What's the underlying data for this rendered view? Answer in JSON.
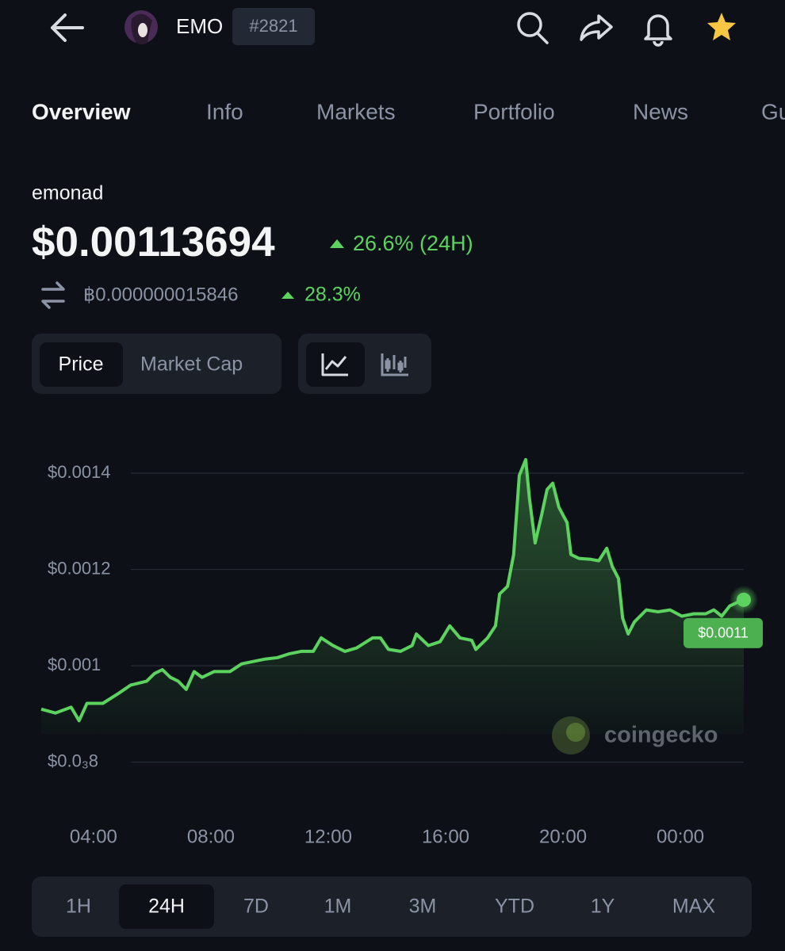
{
  "header": {
    "symbol": "EMO",
    "rank": "#2821"
  },
  "tabs": [
    "Overview",
    "Info",
    "Markets",
    "Portfolio",
    "News",
    "Gu"
  ],
  "coin": {
    "name": "emonad",
    "price": "$0.00113694",
    "change": "26.6% (24H)",
    "btc_price": "฿0.000000015846",
    "btc_change": "28.3%"
  },
  "toggles": {
    "metric": [
      "Price",
      "Market Cap"
    ]
  },
  "chart_data": {
    "type": "line",
    "color": "#5dd35f",
    "grid": true,
    "x": [
      2.22,
      2.7,
      3.24,
      3.51,
      3.78,
      4.32,
      4.86,
      5.27,
      5.81,
      6.08,
      6.35,
      6.62,
      6.89,
      7.16,
      7.43,
      7.7,
      8.11,
      8.65,
      9.05,
      9.46,
      9.86,
      10.27,
      10.68,
      11.08,
      11.49,
      11.76,
      12.16,
      12.57,
      12.97,
      13.51,
      13.78,
      14.05,
      14.46,
      14.86,
      15.0,
      15.41,
      15.81,
      16.14,
      16.49,
      16.89,
      17.03,
      17.43,
      17.7,
      17.84,
      18.11,
      18.32,
      18.51,
      18.73,
      18.86,
      19.05,
      19.27,
      19.46,
      19.65,
      19.86,
      20.14,
      20.27,
      20.54,
      20.95,
      21.22,
      21.49,
      21.68,
      21.89,
      22.03,
      22.22,
      22.43,
      22.84,
      23.24,
      23.65,
      24.05,
      24.46,
      24.86,
      25.14,
      25.41,
      25.68,
      25.95,
      26.16
    ],
    "values": [
      0.00091,
      0.000902,
      0.000914,
      0.000886,
      0.000922,
      0.000922,
      0.000943,
      0.00096,
      0.000968,
      0.000984,
      0.000992,
      0.000976,
      0.000968,
      0.000951,
      0.000988,
      0.000976,
      0.000988,
      0.000988,
      0.001004,
      0.001009,
      0.001014,
      0.001017,
      0.001025,
      0.00103,
      0.00103,
      0.001058,
      0.001042,
      0.00103,
      0.001037,
      0.001058,
      0.001058,
      0.001034,
      0.00103,
      0.001042,
      0.001066,
      0.001042,
      0.00105,
      0.001083,
      0.001058,
      0.001053,
      0.001034,
      0.001058,
      0.001083,
      0.001149,
      0.001165,
      0.001231,
      0.001395,
      0.001428,
      0.001346,
      0.001255,
      0.001313,
      0.001366,
      0.001379,
      0.001329,
      0.001297,
      0.001231,
      0.001223,
      0.001221,
      0.001218,
      0.001244,
      0.001206,
      0.001181,
      0.001099,
      0.001066,
      0.001091,
      0.001116,
      0.001112,
      0.001116,
      0.001103,
      0.001108,
      0.001108,
      0.001116,
      0.001103,
      0.001124,
      0.001132,
      0.001137
    ],
    "xlim": [
      2.22,
      26.16
    ],
    "ylim": [
      0.00076,
      0.00146
    ],
    "yticks": [
      {
        "value": 0.0008,
        "label": "$0.0₃8"
      },
      {
        "value": 0.001,
        "label": "$0.001"
      },
      {
        "value": 0.0012,
        "label": "$0.0012"
      },
      {
        "value": 0.0014,
        "label": "$0.0014"
      }
    ],
    "xticks": [
      {
        "value": 4,
        "label": "04:00"
      },
      {
        "value": 8,
        "label": "08:00"
      },
      {
        "value": 12,
        "label": "12:00"
      },
      {
        "value": 16,
        "label": "16:00"
      },
      {
        "value": 20,
        "label": "20:00"
      },
      {
        "value": 24,
        "label": "00:00"
      }
    ],
    "annotation": "$0.0011",
    "watermark": "coingecko"
  },
  "ranges": [
    "1H",
    "24H",
    "7D",
    "1M",
    "3M",
    "YTD",
    "1Y",
    "MAX"
  ]
}
